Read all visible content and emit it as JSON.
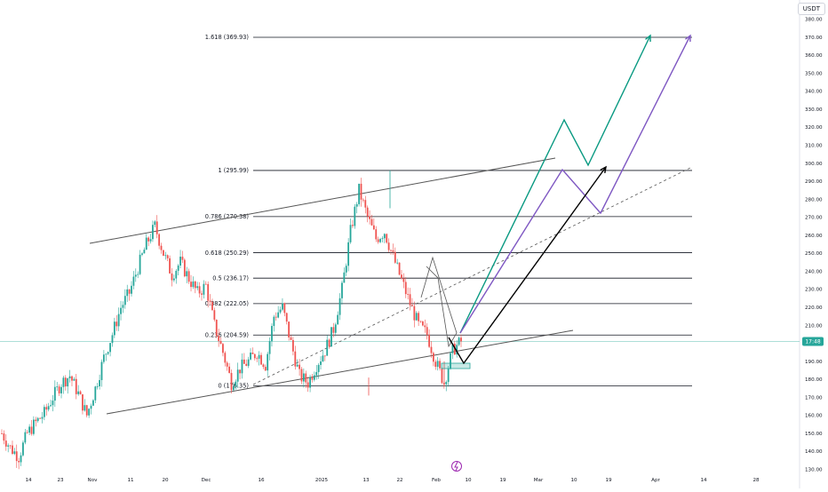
{
  "price_axis": {
    "unit": "USDT",
    "ticks": [
      "380.00",
      "370.00",
      "360.00",
      "350.00",
      "340.00",
      "330.00",
      "320.00",
      "310.00",
      "300.00",
      "290.00",
      "280.00",
      "270.00",
      "260.00",
      "250.00",
      "240.00",
      "230.00",
      "220.00",
      "210.00",
      "200.00",
      "190.00",
      "180.00",
      "170.00",
      "160.00",
      "150.00",
      "140.00",
      "130.00"
    ],
    "current_label": "17:48"
  },
  "time_axis": {
    "ticks": [
      "14",
      "23",
      "Nov",
      "11",
      "20",
      "Dec",
      "16",
      "2025",
      "13",
      "22",
      "Feb",
      "10",
      "19",
      "Mar",
      "10",
      "19",
      "Apr",
      "14",
      "28"
    ]
  },
  "fib_levels": [
    {
      "label": "1.618 (369.93)",
      "price": 369.93
    },
    {
      "label": "1 (295.99)",
      "price": 295.99
    },
    {
      "label": "0.786 (270.38)",
      "price": 270.38
    },
    {
      "label": "0.618 (250.29)",
      "price": 250.29
    },
    {
      "label": "0.5 (236.17)",
      "price": 236.17
    },
    {
      "label": "0.382 (222.05)",
      "price": 222.05
    },
    {
      "label": "0.236 (204.59)",
      "price": 204.59
    },
    {
      "label": "0 (176.35)",
      "price": 176.35
    }
  ],
  "colors": {
    "up": "#26a69a",
    "down": "#ef5350",
    "teal_projection": "#089981",
    "purple_projection": "#7e57c2",
    "black_projection": "#000000",
    "current_price_line": "#26a69a",
    "fib_line": "#131722"
  },
  "icons": {
    "logo": "lightning-icon"
  },
  "chart_data": {
    "type": "candlestick",
    "series": [
      {
        "name": "",
        "ohlc_path_close": [
          150,
          142,
          137,
          150,
          156,
          161,
          170,
          178,
          182,
          172,
          160,
          175,
          192,
          205,
          220,
          228,
          242,
          255,
          265,
          250,
          238,
          245,
          236,
          228,
          232,
          210,
          195,
          178,
          186,
          190,
          195,
          188,
          215,
          220,
          200,
          182,
          178,
          188,
          196,
          208,
          230,
          262,
          285,
          270,
          258,
          262,
          248,
          235,
          222,
          210,
          205,
          190,
          178,
          196,
          201
        ]
      }
    ],
    "ylim": [
      130,
      380
    ],
    "current_price": 201,
    "low_price": 176.35,
    "high_price": 295.99,
    "projection_target": 369.93
  }
}
